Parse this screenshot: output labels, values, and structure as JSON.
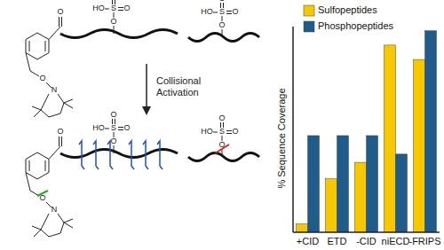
{
  "chart_data": {
    "type": "bar",
    "categories": [
      "+CID",
      "ETD",
      "-CID",
      "niECD",
      "-FRIPS"
    ],
    "series": [
      {
        "name": "Sulfopeptides",
        "color": "#f7c800",
        "values": [
          4,
          26,
          34,
          91,
          84
        ]
      },
      {
        "name": "Phosphopeptides",
        "color": "#1f5c8b",
        "values": [
          47,
          47,
          47,
          38,
          98
        ]
      }
    ],
    "ylabel": "% Sequence Coverage",
    "ylim": [
      0,
      100
    ],
    "yticks": [],
    "tick_labels": "x",
    "legend": "top"
  },
  "diagram": {
    "arrow_label": [
      "Collisional",
      "Activation"
    ],
    "sulfate": {
      "hydroxyl": "HO",
      "sulfur": "S",
      "oxo": "O"
    },
    "carbonyl": "O",
    "ether": "O",
    "nitrogen": "N"
  }
}
